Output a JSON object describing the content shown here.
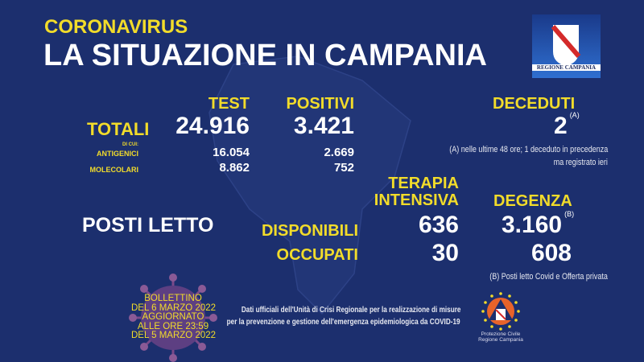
{
  "header": {
    "subtitle": "CORONAVIRUS",
    "title": "LA SITUAZIONE IN CAMPANIA",
    "logo_text": "REGIONE CAMPANIA"
  },
  "tests": {
    "col_test": "TEST",
    "col_positivi": "POSITIVI",
    "totali_label": "TOTALI",
    "totali_test": "24.916",
    "totali_positivi": "3.421",
    "di_cui": "DI CUI:",
    "antigenici_label": "ANTIGENICI",
    "antigenici_test": "16.054",
    "antigenici_positivi": "2.669",
    "molecolari_label": "MOLECOLARI",
    "molecolari_test": "8.862",
    "molecolari_positivi": "752"
  },
  "deceduti": {
    "label": "DECEDUTI",
    "value": "2",
    "ref": "(A)",
    "note_line1": "(A) nelle ultime 48 ore; 1 deceduto in precedenza",
    "note_line2": "ma registrato ieri"
  },
  "posti_letto": {
    "label": "POSTI LETTO",
    "col_ti_1": "TERAPIA",
    "col_ti_2": "INTENSIVA",
    "col_degenza": "DEGENZA",
    "disponibili_label": "DISPONIBILI",
    "disponibili_ti": "636",
    "disponibili_degenza": "3.160",
    "degenza_ref": "(B)",
    "occupati_label": "OCCUPATI",
    "occupati_ti": "30",
    "occupati_degenza": "608",
    "note": "(B) Posti letto Covid e Offerta privata"
  },
  "bulletin": {
    "line1": "BOLLETTINO",
    "line2": "DEL 6 MARZO 2022",
    "line3": "AGGIORNATO",
    "line4": "ALLE ORE 23:59",
    "line5": "DEL 5 MARZO 2022"
  },
  "footer": {
    "line1": "Dati ufficiali dell'Unità di Crisi Regionale per la realizzazione di misure",
    "line2": "per la prevenzione e gestione dell'emergenza epidemiologica da COVID-19",
    "pc_logo_line1": "Protezione Civile",
    "pc_logo_line2": "Regione Campania"
  },
  "colors": {
    "background": "#1c2f6e",
    "accent": "#f2dc2a"
  }
}
